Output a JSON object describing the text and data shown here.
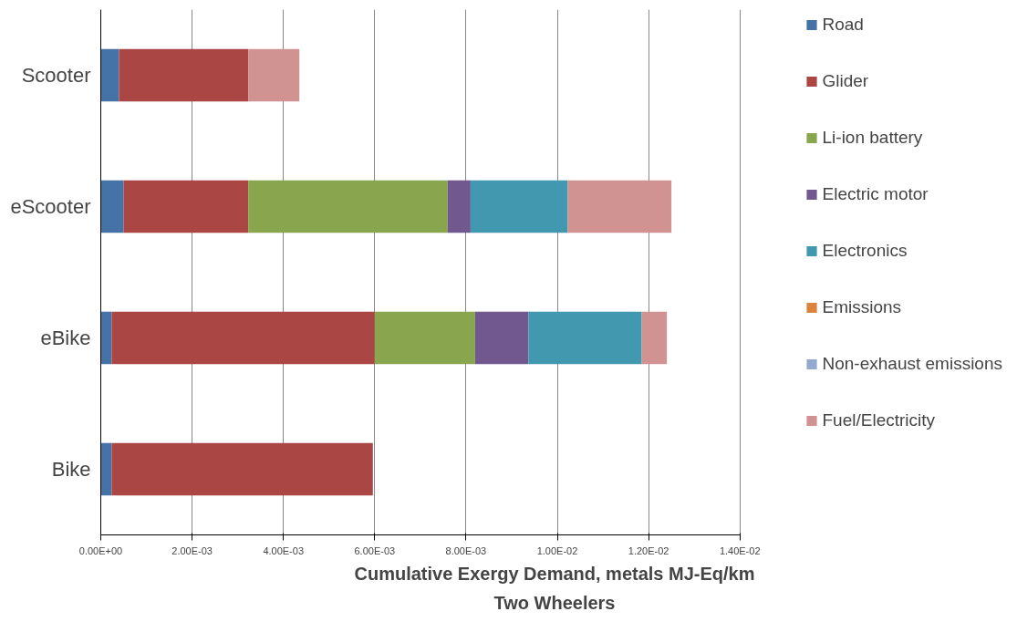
{
  "chart_data": {
    "type": "bar",
    "orientation": "horizontal",
    "stacked": true,
    "title": "Two Wheelers",
    "xlabel": "Cumulative Exergy Demand, metals MJ-Eq/km",
    "categories": [
      "Scooter",
      "eScooter",
      "eBike",
      "Bike"
    ],
    "series": [
      {
        "name": "Road",
        "color": "#4572a7",
        "values": [
          0.0004,
          0.0005,
          0.00024,
          0.00024
        ]
      },
      {
        "name": "Glider",
        "color": "#aa4643",
        "values": [
          0.00283,
          0.00273,
          0.00576,
          0.00572
        ]
      },
      {
        "name": "Li-ion battery",
        "color": "#89a54e",
        "values": [
          0,
          0.00437,
          0.0022,
          0
        ]
      },
      {
        "name": "Electric motor",
        "color": "#71588f",
        "values": [
          0,
          0.0005,
          0.00117,
          0
        ]
      },
      {
        "name": "Electronics",
        "color": "#4198af",
        "values": [
          0,
          0.00213,
          0.00248,
          0
        ]
      },
      {
        "name": "Emissions",
        "color": "#db843d",
        "values": [
          0,
          0,
          0,
          0
        ]
      },
      {
        "name": "Non-exhaust emissions",
        "color": "#93a9cf",
        "values": [
          0,
          0,
          0,
          0
        ]
      },
      {
        "name": "Fuel/Electricity",
        "color": "#d19392",
        "values": [
          0.00112,
          0.00227,
          0.00055,
          0
        ]
      }
    ],
    "xlim": [
      0,
      0.014
    ],
    "xticks": [
      {
        "value": 0,
        "label": "0.00E+00"
      },
      {
        "value": 0.002,
        "label": "2.00E-03"
      },
      {
        "value": 0.004,
        "label": "4.00E-03"
      },
      {
        "value": 0.006,
        "label": "6.00E-03"
      },
      {
        "value": 0.008,
        "label": "8.00E-03"
      },
      {
        "value": 0.01,
        "label": "1.00E-02"
      },
      {
        "value": 0.012,
        "label": "1.20E-02"
      },
      {
        "value": 0.014,
        "label": "1.40E-02"
      }
    ],
    "grid": "x",
    "legend": "right"
  }
}
